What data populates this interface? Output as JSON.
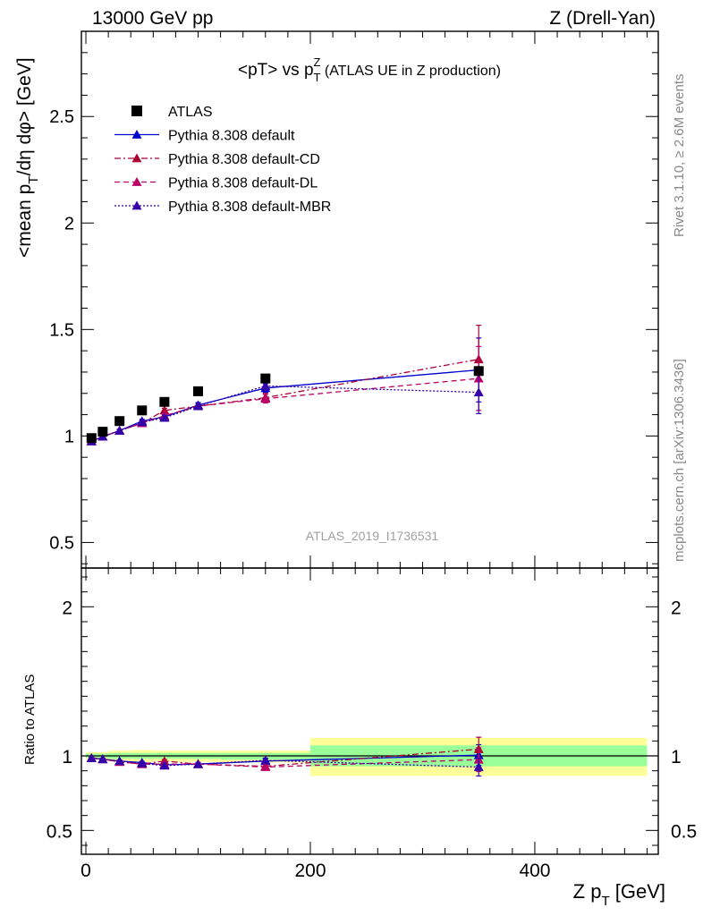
{
  "header": {
    "left": "13000 GeV pp",
    "right": "Z (Drell-Yan)"
  },
  "side": {
    "top": "Rivet 3.1.10, ≥ 2.6M events",
    "bottom": "mcplots.cern.ch [arXiv:1306.3436]"
  },
  "chart_data": [
    {
      "type": "scatter",
      "panel": "main",
      "title": "<pT> vs pTZ (ATLAS UE in Z production)",
      "title_parts": {
        "pre": "<pT> vs p",
        "sub": "T",
        "sup": "Z",
        "post": " (ATLAS UE in Z production)"
      },
      "ylabel": "<mean pT/dη dφ> [GeV]",
      "ylabel_parts": {
        "pre": "<mean p",
        "sub": "T",
        "post": "/dη dφ> [GeV]"
      },
      "analysis_label": "ATLAS_2019_I1736531",
      "xlim": [
        -4,
        510
      ],
      "ylim": [
        0.38,
        2.9
      ],
      "yticks": [
        0.5,
        1,
        1.5,
        2,
        2.5
      ],
      "ytick_labels": [
        "0.5",
        "1",
        "1.5",
        "2",
        "2.5"
      ],
      "legend_position": "top-left",
      "series": [
        {
          "name": "ATLAS",
          "style": "data",
          "color": "#000000",
          "marker": "square",
          "x": [
            5,
            15,
            30,
            50,
            70,
            100,
            160,
            350
          ],
          "y": [
            0.99,
            1.02,
            1.07,
            1.12,
            1.16,
            1.21,
            1.27,
            1.305
          ]
        },
        {
          "name": "Pythia 8.308 default",
          "style": "solid",
          "color": "#0000cc",
          "marker": "triangle",
          "x": [
            5,
            15,
            30,
            50,
            70,
            100,
            160,
            350
          ],
          "y": [
            0.975,
            0.997,
            1.025,
            1.07,
            1.09,
            1.145,
            1.225,
            1.31
          ],
          "yerr": [
            0.005,
            0.005,
            0.006,
            0.008,
            0.01,
            0.012,
            0.02,
            0.15
          ]
        },
        {
          "name": "Pythia 8.308 default-CD",
          "style": "dashdot",
          "color": "#aa0033",
          "marker": "triangle",
          "x": [
            5,
            15,
            30,
            50,
            70,
            100,
            160,
            350
          ],
          "y": [
            0.975,
            0.997,
            1.025,
            1.06,
            1.12,
            1.14,
            1.18,
            1.36
          ],
          "yerr": [
            0.005,
            0.005,
            0.006,
            0.008,
            0.01,
            0.012,
            0.02,
            0.16
          ]
        },
        {
          "name": "Pythia 8.308 default-DL",
          "style": "dashed",
          "color": "#bb0066",
          "marker": "triangle",
          "x": [
            5,
            15,
            30,
            50,
            70,
            100,
            160,
            350
          ],
          "y": [
            0.975,
            0.997,
            1.025,
            1.06,
            1.095,
            1.14,
            1.175,
            1.27
          ],
          "yerr": [
            0.005,
            0.005,
            0.006,
            0.008,
            0.01,
            0.012,
            0.02,
            0.15
          ]
        },
        {
          "name": "Pythia 8.308 default-MBR",
          "style": "dotted",
          "color": "#3300aa",
          "marker": "triangle",
          "x": [
            5,
            15,
            30,
            50,
            70,
            100,
            160,
            350
          ],
          "y": [
            0.975,
            0.997,
            1.025,
            1.065,
            1.085,
            1.14,
            1.235,
            1.205
          ],
          "yerr": [
            0.005,
            0.005,
            0.006,
            0.008,
            0.01,
            0.012,
            0.02,
            0.1
          ]
        }
      ]
    },
    {
      "type": "scatter",
      "panel": "ratio",
      "ylabel": "Ratio to ATLAS",
      "xlabel": "Z pT [GeV]",
      "xlabel_parts": {
        "pre": "Z p",
        "sub": "T",
        "post": " [GeV]"
      },
      "xlim": [
        -4,
        510
      ],
      "ylim": [
        0.34,
        2.26
      ],
      "xticks": [
        0,
        200,
        400
      ],
      "xtick_labels": [
        "0",
        "200",
        "400"
      ],
      "yticks": [
        0.5,
        1,
        2
      ],
      "ytick_labels": [
        "0.5",
        "1",
        "2"
      ],
      "reference_line": 1,
      "bands": [
        {
          "x0": 0,
          "x1": 20,
          "stat_lo": 0.985,
          "stat_hi": 1.015,
          "tot_lo": 0.975,
          "tot_hi": 1.025
        },
        {
          "x0": 20,
          "x1": 40,
          "stat_lo": 0.98,
          "stat_hi": 1.02,
          "tot_lo": 0.965,
          "tot_hi": 1.035
        },
        {
          "x0": 40,
          "x1": 60,
          "stat_lo": 0.98,
          "stat_hi": 1.02,
          "tot_lo": 0.96,
          "tot_hi": 1.04
        },
        {
          "x0": 60,
          "x1": 80,
          "stat_lo": 0.98,
          "stat_hi": 1.02,
          "tot_lo": 0.965,
          "tot_hi": 1.035
        },
        {
          "x0": 80,
          "x1": 120,
          "stat_lo": 0.98,
          "stat_hi": 1.02,
          "tot_lo": 0.96,
          "tot_hi": 1.035
        },
        {
          "x0": 120,
          "x1": 200,
          "stat_lo": 0.975,
          "stat_hi": 1.02,
          "tot_lo": 0.955,
          "tot_hi": 1.035
        },
        {
          "x0": 200,
          "x1": 500,
          "stat_lo": 0.93,
          "stat_hi": 1.07,
          "tot_lo": 0.865,
          "tot_hi": 1.12
        }
      ],
      "band_colors": {
        "stat": "#99ff99",
        "total": "#ffff99"
      },
      "series": [
        {
          "name": "Pythia 8.308 default",
          "style": "solid",
          "color": "#0000cc",
          "x": [
            5,
            15,
            30,
            50,
            70,
            100,
            160,
            350
          ],
          "y": [
            0.985,
            0.978,
            0.965,
            0.955,
            0.94,
            0.945,
            0.965,
            1.005
          ],
          "yerr": [
            0.005,
            0.005,
            0.006,
            0.008,
            0.01,
            0.01,
            0.015,
            0.07
          ]
        },
        {
          "name": "Pythia 8.308 default-CD",
          "style": "dashdot",
          "color": "#aa0033",
          "x": [
            5,
            15,
            30,
            50,
            70,
            100,
            160,
            350
          ],
          "y": [
            0.985,
            0.978,
            0.96,
            0.945,
            0.965,
            0.945,
            0.93,
            1.045
          ],
          "yerr": [
            0.005,
            0.005,
            0.006,
            0.008,
            0.01,
            0.01,
            0.015,
            0.08
          ]
        },
        {
          "name": "Pythia 8.308 default-DL",
          "style": "dashed",
          "color": "#bb0066",
          "x": [
            5,
            15,
            30,
            50,
            70,
            100,
            160,
            350
          ],
          "y": [
            0.985,
            0.978,
            0.96,
            0.945,
            0.945,
            0.945,
            0.925,
            0.975
          ],
          "yerr": [
            0.005,
            0.005,
            0.006,
            0.008,
            0.01,
            0.01,
            0.015,
            0.08
          ]
        },
        {
          "name": "Pythia 8.308 default-MBR",
          "style": "dotted",
          "color": "#3300aa",
          "x": [
            5,
            15,
            30,
            50,
            70,
            100,
            160,
            350
          ],
          "y": [
            0.985,
            0.978,
            0.965,
            0.95,
            0.935,
            0.945,
            0.97,
            0.925
          ],
          "yerr": [
            0.005,
            0.005,
            0.006,
            0.008,
            0.01,
            0.01,
            0.015,
            0.06
          ]
        }
      ]
    }
  ]
}
